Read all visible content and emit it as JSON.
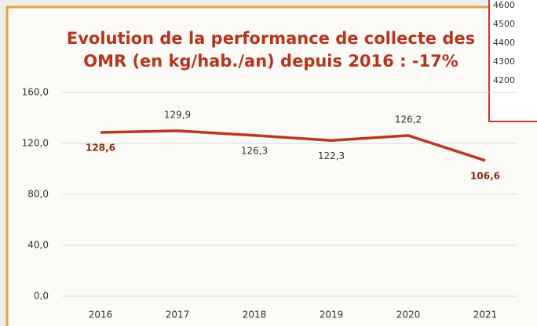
{
  "chart_data": {
    "type": "line",
    "title": [
      "Evolution de la performance de collecte des",
      "OMR (en kg/hab./an) depuis 2016 : -17%"
    ],
    "categories": [
      "2016",
      "2017",
      "2018",
      "2019",
      "2020",
      "2021"
    ],
    "values": [
      128.6,
      129.9,
      126.3,
      122.3,
      126.2,
      106.6
    ],
    "value_labels": [
      "128,6",
      "129,9",
      "126,3",
      "122,3",
      "126,2",
      "106,6"
    ],
    "color": "#b83a1e",
    "ylim": [
      0,
      160
    ],
    "yticks": [
      {
        "value": 0,
        "label": "0,0"
      },
      {
        "value": 40,
        "label": "40,0"
      },
      {
        "value": 80,
        "label": "80,0"
      },
      {
        "value": 120,
        "label": "120,0"
      },
      {
        "value": 160,
        "label": "160,0"
      }
    ],
    "grid": true
  },
  "inset": {
    "labels": [
      "4600",
      "4500",
      "4400",
      "4300",
      "4200"
    ]
  }
}
